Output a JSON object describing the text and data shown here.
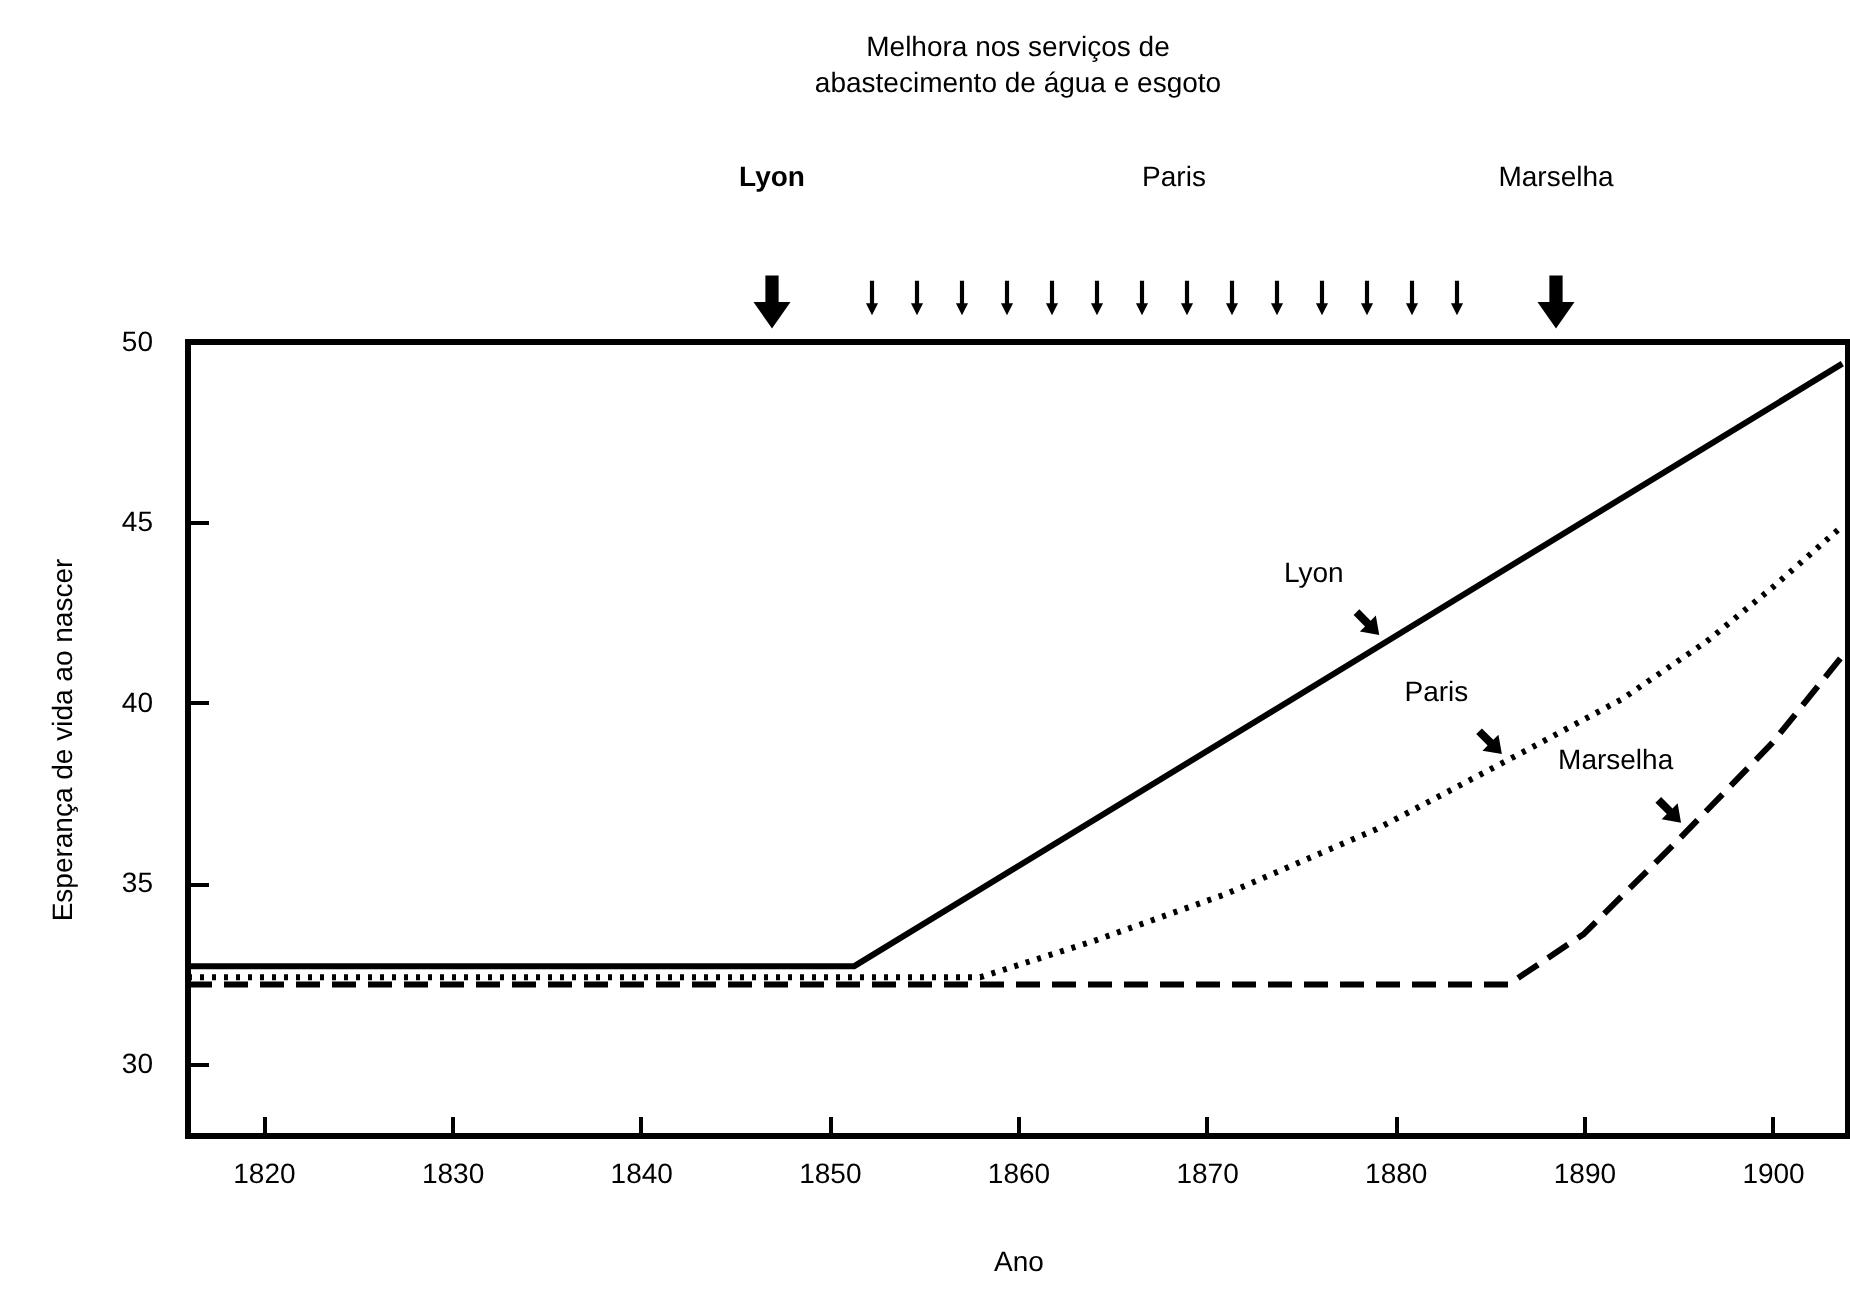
{
  "chart_data": {
    "type": "line",
    "title": "Melhora nos serviços de\nabastecimento de água e esgoto",
    "xlabel": "Ano",
    "ylabel": "Esperança de vida ao nascer",
    "xlim": [
      1816,
      1904
    ],
    "xticks": [
      1820,
      1830,
      1840,
      1850,
      1860,
      1870,
      1880,
      1890,
      1900
    ],
    "ylim": [
      28,
      50
    ],
    "yticks": [
      30,
      35,
      40,
      45,
      50
    ],
    "series": [
      {
        "color": "#000000",
        "line_style": "solid",
        "x": [
          1816,
          1851.3,
          1903.7
        ],
        "values": [
          32.7,
          32.7,
          49.4
        ]
      },
      {
        "color": "#000000",
        "line_style": "dotted",
        "x": [
          1816,
          1858,
          1864,
          1871,
          1879,
          1887,
          1892,
          1896.5,
          1900,
          1903.7
        ],
        "values": [
          32.4,
          32.4,
          33.4,
          34.7,
          36.5,
          38.7,
          40.1,
          41.7,
          43.2,
          44.9
        ]
      },
      {
        "color": "#000000",
        "line_style": "dashed",
        "x": [
          1816,
          1886,
          1890,
          1895,
          1900,
          1903.7
        ],
        "values": [
          32.2,
          32.2,
          33.6,
          36.2,
          38.9,
          41.3
        ]
      }
    ],
    "annotations": [
      "Lyon",
      "Paris",
      "Marselha",
      {
        "text": "Lyon",
        "x": 1879.5,
        "y": 41.7
      },
      {
        "text": "Paris",
        "x": 1886,
        "y": 38.4
      },
      {
        "text": "Marselha",
        "x": 1895.5,
        "y": 36.5
      }
    ]
  }
}
